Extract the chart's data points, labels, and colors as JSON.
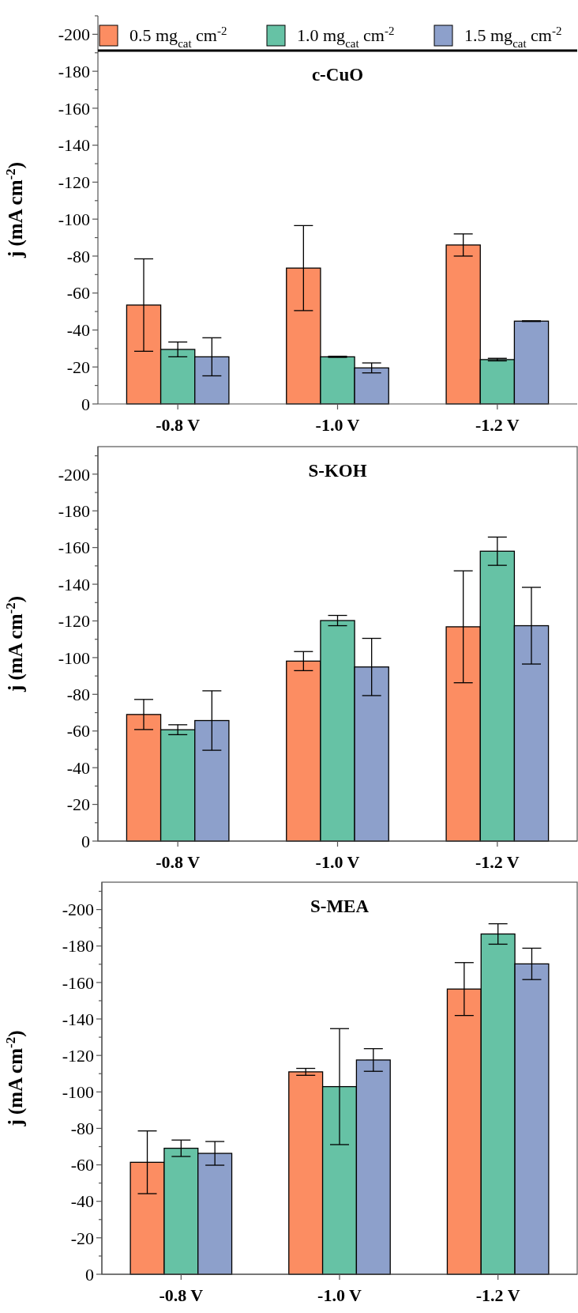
{
  "chart_data": [
    {
      "type": "bar",
      "title": "c-CuO",
      "ylabel": "j (mA cm$^{-2}$)",
      "categories": [
        "-0.8 V",
        "-1.0 V",
        "-1.2 V"
      ],
      "ylim": [
        0,
        -210
      ],
      "yticks": [
        0,
        {
          "value": -10,
          "label": null
        },
        -20,
        {
          "value": -30,
          "label": null
        },
        -40,
        {
          "value": -50,
          "label": null
        },
        -60,
        {
          "value": -70,
          "label": null
        },
        -80,
        {
          "value": -90,
          "label": null
        },
        -100,
        {
          "value": -110,
          "label": null
        },
        -120,
        {
          "value": -130,
          "label": null
        },
        -140,
        {
          "value": -150,
          "label": null
        },
        -160,
        {
          "value": -170,
          "label": null
        },
        -180,
        {
          "value": -190,
          "label": null
        },
        -200,
        {
          "value": -210,
          "label": null
        }
      ],
      "legend": "top",
      "series": [
        {
          "name": "0.5 mg$_{cat}$ cm$^{-2}$",
          "color": "#fc8d62",
          "values": [
            -53.5,
            -73.5,
            -86
          ],
          "errors": [
            25,
            23,
            6
          ]
        },
        {
          "name": "1.0 mg$_{cat}$ cm$^{-2}$",
          "color": "#66c2a5",
          "values": [
            -29.5,
            -25.5,
            -24
          ],
          "errors": [
            4,
            0.3,
            0.7
          ]
        },
        {
          "name": "1.5 mg$_{cat}$ cm$^{-2}$",
          "color": "#8da0cb",
          "values": [
            -25.5,
            -19.5,
            -44.8
          ],
          "errors": [
            10.3,
            2.7,
            0.2
          ]
        }
      ]
    },
    {
      "type": "bar",
      "title": "S-KOH",
      "ylabel": "j (mA cm$^{-2}$)",
      "categories": [
        "-0.8 V",
        "-1.0 V",
        "-1.2 V"
      ],
      "ylim": [
        0,
        -215
      ],
      "yticks": [
        0,
        {
          "value": -10,
          "label": null
        },
        -20,
        {
          "value": -30,
          "label": null
        },
        -40,
        {
          "value": -50,
          "label": null
        },
        -60,
        {
          "value": -70,
          "label": null
        },
        -80,
        {
          "value": -90,
          "label": null
        },
        -100,
        {
          "value": -110,
          "label": null
        },
        -120,
        {
          "value": -130,
          "label": null
        },
        -140,
        {
          "value": -150,
          "label": null
        },
        -160,
        {
          "value": -170,
          "label": null
        },
        -180,
        {
          "value": -190,
          "label": null
        },
        -200,
        {
          "value": -210,
          "label": null
        }
      ],
      "series": [
        {
          "color": "#fc8d62",
          "values": [
            -69,
            -98.1,
            -116.8
          ],
          "errors": [
            8.2,
            5.2,
            30.5
          ]
        },
        {
          "color": "#66c2a5",
          "values": [
            -60.7,
            -120.2,
            -158
          ],
          "errors": [
            2.7,
            2.8,
            7.7
          ]
        },
        {
          "color": "#8da0cb",
          "values": [
            -65.7,
            -94.9,
            -117.4
          ],
          "errors": [
            16.2,
            15.6,
            20.9
          ]
        }
      ]
    },
    {
      "type": "bar",
      "title": "S-MEA",
      "ylabel": "j (mA cm$^{-2}$)",
      "categories": [
        "-0.8 V",
        "-1.0 V",
        "-1.2 V"
      ],
      "ylim": [
        0,
        -215
      ],
      "yticks": [
        0,
        {
          "value": -10,
          "label": null
        },
        -20,
        {
          "value": -30,
          "label": null
        },
        -40,
        {
          "value": -50,
          "label": null
        },
        -60,
        {
          "value": -70,
          "label": null
        },
        -80,
        {
          "value": -90,
          "label": null
        },
        -100,
        {
          "value": -110,
          "label": null
        },
        -120,
        {
          "value": -130,
          "label": null
        },
        -140,
        {
          "value": -150,
          "label": null
        },
        -160,
        {
          "value": -170,
          "label": null
        },
        -180,
        {
          "value": -190,
          "label": null
        },
        -200,
        {
          "value": -210,
          "label": null
        }
      ],
      "series": [
        {
          "color": "#fc8d62",
          "values": [
            -61.4,
            -111,
            -156.4
          ],
          "errors": [
            17.2,
            1.9,
            14.5
          ]
        },
        {
          "color": "#66c2a5",
          "values": [
            -69.1,
            -102.9,
            -186.6
          ],
          "errors": [
            4.5,
            31.8,
            5.6
          ]
        },
        {
          "color": "#8da0cb",
          "values": [
            -66.3,
            -117.5,
            -170.2
          ],
          "errors": [
            6.5,
            6.2,
            8.6
          ]
        }
      ]
    }
  ]
}
